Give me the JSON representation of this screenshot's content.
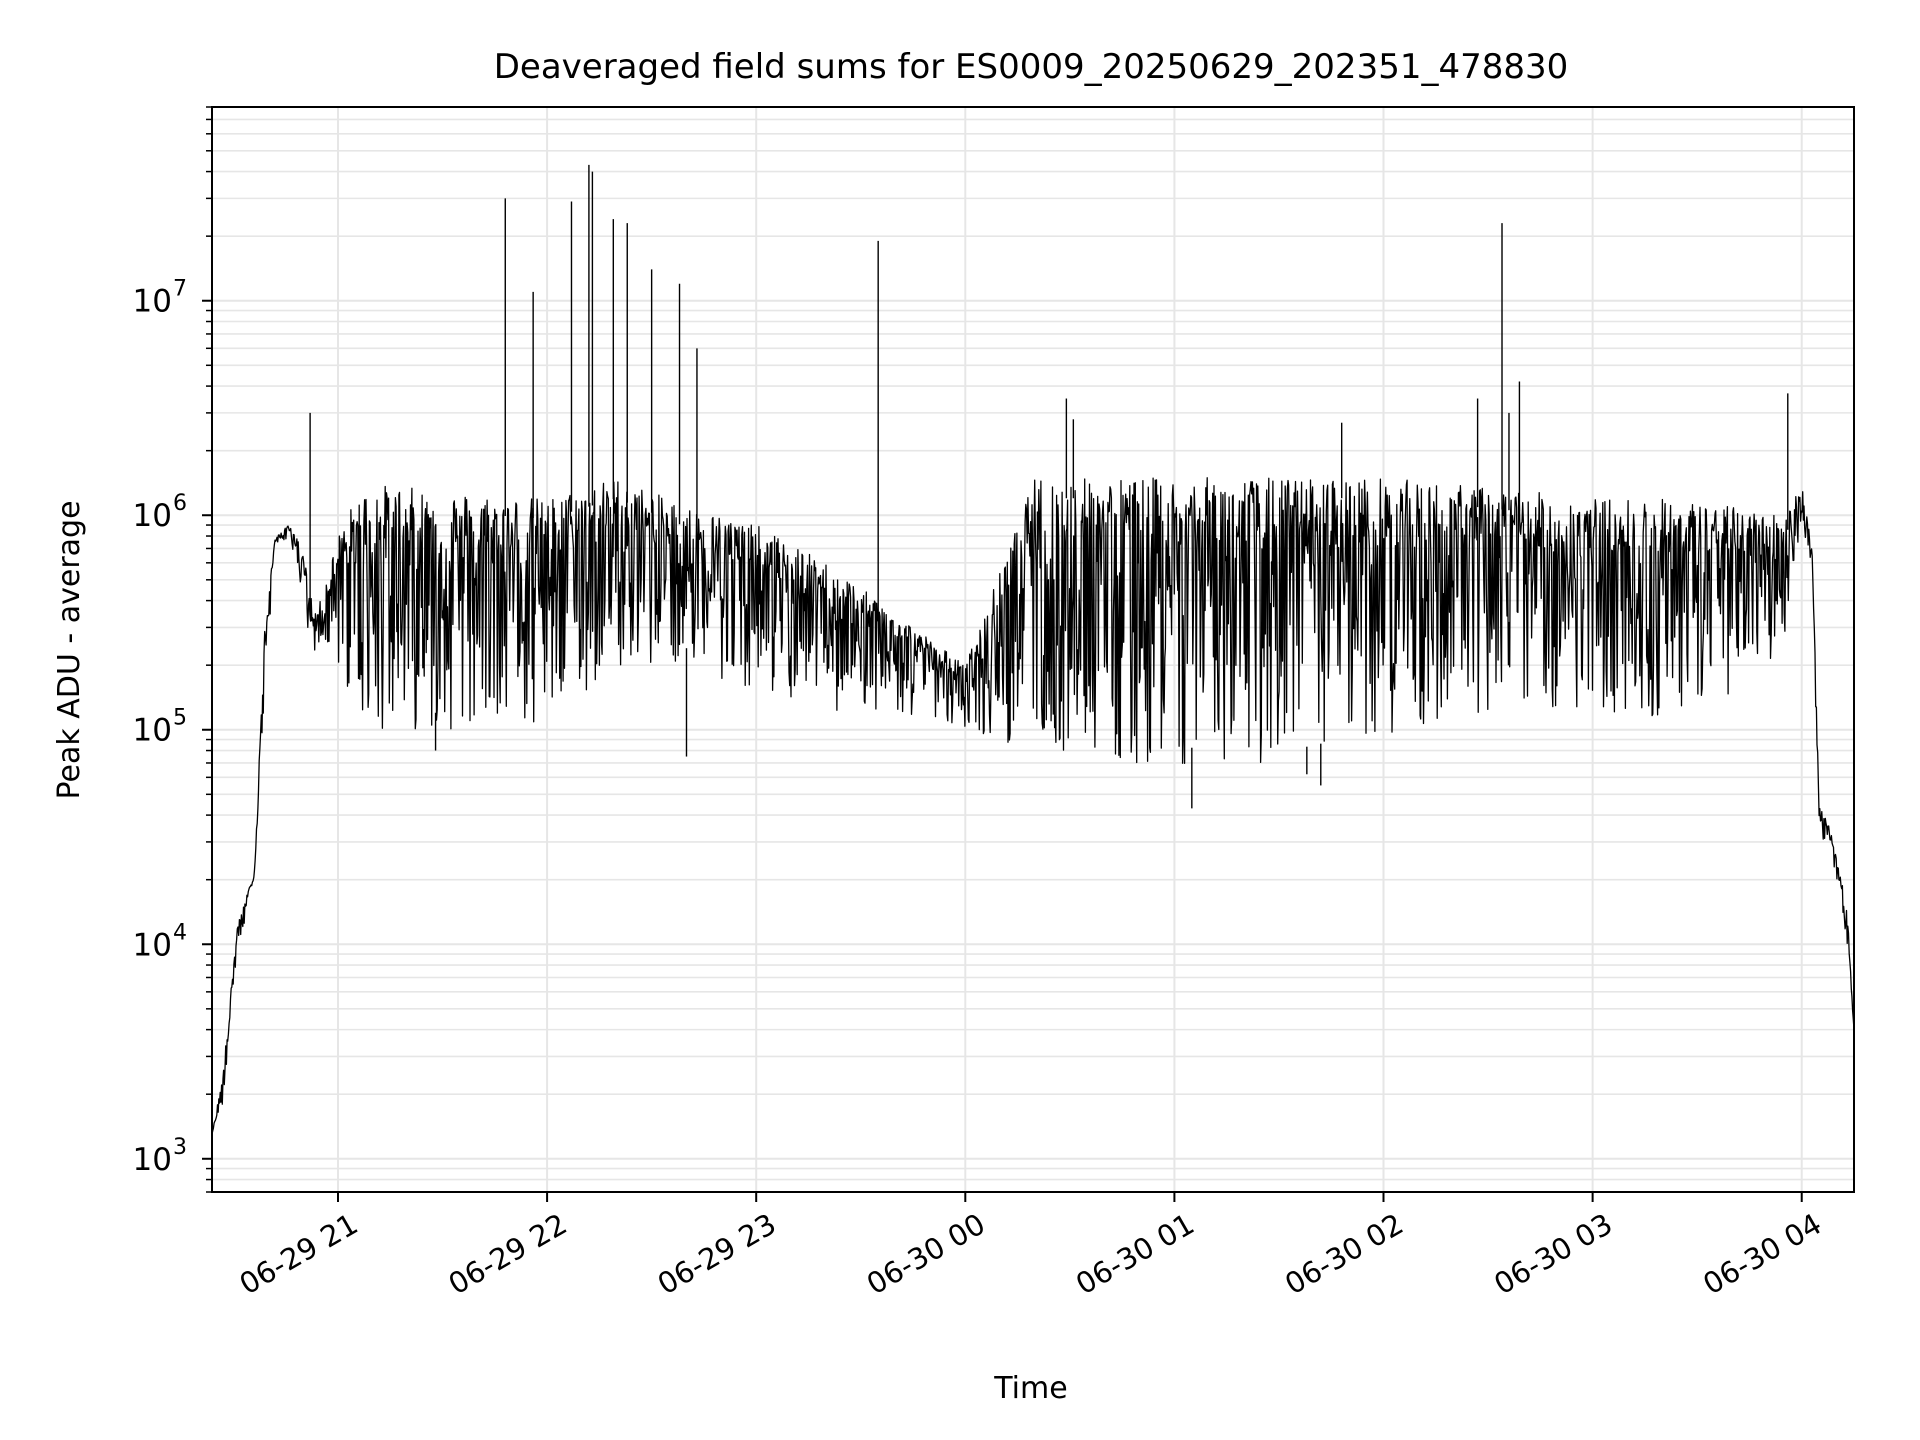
{
  "chart_data": {
    "type": "line",
    "title": "Deaveraged field sums for ES0009_20250629_202351_478830",
    "xlabel": "Time",
    "ylabel": "Peak ADU - average",
    "xlim": [
      "2025-06-29 20:23:51",
      "2025-06-30 04:15:00"
    ],
    "ylim": [
      700,
      80000000
    ],
    "yscale": "log",
    "grid": "on (major and minor)",
    "x_tick_labels": [
      "06-29 21",
      "06-29 22",
      "06-29 23",
      "06-30 00",
      "06-30 01",
      "06-30 02",
      "06-30 03",
      "06-30 04"
    ],
    "x_tick_values": [
      "2025-06-29 21:00",
      "2025-06-29 22:00",
      "2025-06-29 23:00",
      "2025-06-30 00:00",
      "2025-06-30 01:00",
      "2025-06-30 02:00",
      "2025-06-30 03:00",
      "2025-06-30 04:00"
    ],
    "y_tick_labels": [
      {
        "base": "10",
        "exp": "3"
      },
      {
        "base": "10",
        "exp": "4"
      },
      {
        "base": "10",
        "exp": "5"
      },
      {
        "base": "10",
        "exp": "6"
      },
      {
        "base": "10",
        "exp": "7"
      }
    ],
    "y_tick_values": [
      1000,
      10000,
      100000,
      1000000,
      10000000
    ],
    "line_color": "#000000",
    "grid_color": "#e6e6e6",
    "envelope": {
      "x": [
        "2025-06-29 20:23:51",
        "2025-06-29 20:27",
        "2025-06-29 20:31",
        "2025-06-29 20:36",
        "2025-06-29 20:39",
        "2025-06-29 20:42",
        "2025-06-29 20:46",
        "2025-06-29 20:50",
        "2025-06-29 20:53",
        "2025-06-29 20:55",
        "2025-06-29 21:00",
        "2025-06-29 21:05",
        "2025-06-29 21:10",
        "2025-06-29 21:30",
        "2025-06-29 22:00",
        "2025-06-29 22:20",
        "2025-06-29 22:40",
        "2025-06-29 23:00",
        "2025-06-29 23:20",
        "2025-06-29 23:40",
        "2025-06-30 00:00",
        "2025-06-30 00:20",
        "2025-06-30 00:40",
        "2025-06-30 01:00",
        "2025-06-30 01:20",
        "2025-06-30 01:40",
        "2025-06-30 02:00",
        "2025-06-30 02:20",
        "2025-06-30 02:40",
        "2025-06-30 03:00",
        "2025-06-30 03:20",
        "2025-06-30 03:40",
        "2025-06-30 03:55",
        "2025-06-30 04:00",
        "2025-06-30 04:03",
        "2025-06-30 04:05",
        "2025-06-30 04:08",
        "2025-06-30 04:10",
        "2025-06-30 04:13",
        "2025-06-30 04:15"
      ],
      "high": [
        1300,
        2500,
        12000,
        22000,
        300000,
        800000,
        900000,
        700000,
        350000,
        400000,
        800000,
        1200000,
        1400000,
        1300000,
        1200000,
        1500000,
        1100000,
        900000,
        600000,
        350000,
        200000,
        1500000,
        1500000,
        1500000,
        1500000,
        1500000,
        1500000,
        1400000,
        1300000,
        1200000,
        1200000,
        1100000,
        1000000,
        1400000,
        700000,
        45000,
        35000,
        25000,
        15000,
        4000
      ],
      "low": [
        1300,
        1800,
        9000,
        18000,
        150000,
        700000,
        800000,
        350000,
        200000,
        250000,
        200000,
        120000,
        100000,
        100000,
        100000,
        200000,
        200000,
        150000,
        120000,
        120000,
        100000,
        80000,
        70000,
        70000,
        65000,
        70000,
        90000,
        110000,
        130000,
        120000,
        110000,
        140000,
        250000,
        1000000,
        500000,
        30000,
        25000,
        20000,
        10000,
        4000
      ]
    },
    "spikes": [
      {
        "x": "2025-06-29 20:52",
        "y": 3000000
      },
      {
        "x": "2025-06-29 21:48",
        "y": 30000000
      },
      {
        "x": "2025-06-29 21:56",
        "y": 11000000
      },
      {
        "x": "2025-06-29 22:07",
        "y": 29000000
      },
      {
        "x": "2025-06-29 22:12",
        "y": 43000000
      },
      {
        "x": "2025-06-29 22:13",
        "y": 40000000
      },
      {
        "x": "2025-06-29 22:19",
        "y": 24000000
      },
      {
        "x": "2025-06-29 22:23",
        "y": 23000000
      },
      {
        "x": "2025-06-29 22:30",
        "y": 14000000
      },
      {
        "x": "2025-06-29 22:38",
        "y": 12000000
      },
      {
        "x": "2025-06-29 22:43",
        "y": 6000000
      },
      {
        "x": "2025-06-29 23:35",
        "y": 19000000
      },
      {
        "x": "2025-06-30 00:29",
        "y": 3500000
      },
      {
        "x": "2025-06-30 00:31",
        "y": 2800000
      },
      {
        "x": "2025-06-30 01:48",
        "y": 2700000
      },
      {
        "x": "2025-06-30 02:27",
        "y": 3500000
      },
      {
        "x": "2025-06-30 02:34",
        "y": 23000000
      },
      {
        "x": "2025-06-30 02:36",
        "y": 3000000
      },
      {
        "x": "2025-06-30 02:39",
        "y": 4200000
      },
      {
        "x": "2025-06-30 03:56",
        "y": 3700000
      }
    ],
    "dips": [
      {
        "x": "2025-06-29 21:28",
        "y": 80000
      },
      {
        "x": "2025-06-29 22:40",
        "y": 75000
      },
      {
        "x": "2025-06-30 01:05",
        "y": 43000
      },
      {
        "x": "2025-06-30 01:42",
        "y": 55000
      },
      {
        "x": "2025-06-30 01:38",
        "y": 62000
      }
    ]
  }
}
